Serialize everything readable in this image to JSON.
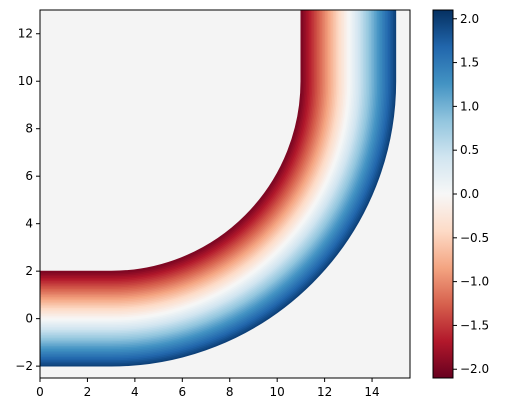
{
  "chart_data": {
    "type": "heatmap",
    "title": "",
    "xlabel": "",
    "ylabel": "",
    "xlim": [
      0,
      15.6
    ],
    "ylim": [
      -2.5,
      13
    ],
    "xticks": [
      0,
      2,
      4,
      6,
      8,
      10,
      12,
      14
    ],
    "yticks": [
      -2,
      0,
      2,
      4,
      6,
      8,
      10,
      12
    ],
    "background_color": "#f4f4f4",
    "colormap": "RdBu",
    "colorbar": {
      "range": [
        -2.1,
        2.1
      ],
      "ticks": [
        -2.0,
        -1.5,
        -1.0,
        -0.5,
        0.0,
        0.5,
        1.0,
        1.5,
        2.0
      ],
      "tick_labels": [
        "−2.0",
        "−1.5",
        "−1.0",
        "−0.5",
        "0.0",
        "0.5",
        "1.0",
        "1.5",
        "2.0"
      ]
    },
    "field": {
      "shape": "curved band (quarter-circle bend joining horizontal and vertical straight segments)",
      "bend_center": [
        3,
        10
      ],
      "centerline_radius": 10,
      "band_half_width": 2,
      "value_rule": "signed distance from band centerline (positive toward outer edge)",
      "horizontal_segment_x": [
        0,
        3
      ],
      "vertical_segment_y": [
        10,
        13
      ]
    }
  }
}
